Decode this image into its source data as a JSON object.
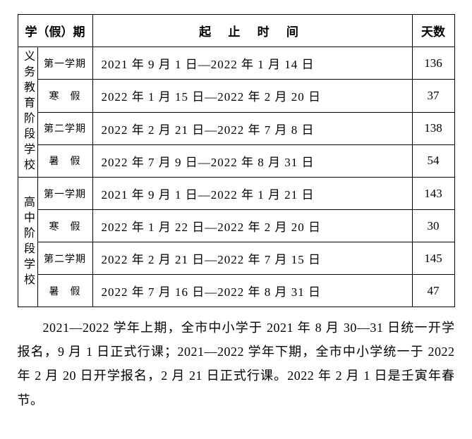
{
  "header": {
    "term_col": "学（假）期",
    "range_col": "起 止 时 间",
    "days_col": "天数"
  },
  "groups": [
    {
      "label": "义务教育阶段学校",
      "rows": [
        {
          "term": "第一学期",
          "range": "2021 年 9 月 1 日—2022 年 1 月 14 日",
          "days": "136"
        },
        {
          "term": "寒　假",
          "range": "2022 年 1 月 15 日—2022 年 2 月 20 日",
          "days": "37"
        },
        {
          "term": "第二学期",
          "range": "2022 年 2 月 21 日—2022 年 7 月 8 日",
          "days": "138"
        },
        {
          "term": "暑　假",
          "range": "2022 年 7 月 9 日—2022 年 8 月 31 日",
          "days": "54"
        }
      ]
    },
    {
      "label": "高中阶段学校",
      "rows": [
        {
          "term": "第一学期",
          "range": "2021 年 9 月 1 日—2022 年 1 月 21 日",
          "days": "143"
        },
        {
          "term": "寒　假",
          "range": "2022 年 1 月 22 日—2022 年 2 月 20 日",
          "days": "30"
        },
        {
          "term": "第二学期",
          "range": "2022 年 2 月 21 日—2022 年 7 月 15 日",
          "days": "145"
        },
        {
          "term": "暑　假",
          "range": "2022 年 7 月 16 日—2022 年 8 月 31 日",
          "days": "47"
        }
      ]
    }
  ],
  "paragraph": "2021—2022 学年上期，全市中小学于 2021 年 8 月 30—31 日统一开学报名，9 月 1 日正式行课；2021—2022 学年下期，全市中小学统一于 2022 年 2 月 20 日开学报名，2 月 21 日正式行课。2022 年 2 月 1 日是壬寅年春节。",
  "style": {
    "font_family": "SimSun",
    "border_color": "#000000",
    "background": "#ffffff",
    "text_color": "#000000",
    "table_font_size_pt": 13,
    "para_font_size_pt": 14
  }
}
